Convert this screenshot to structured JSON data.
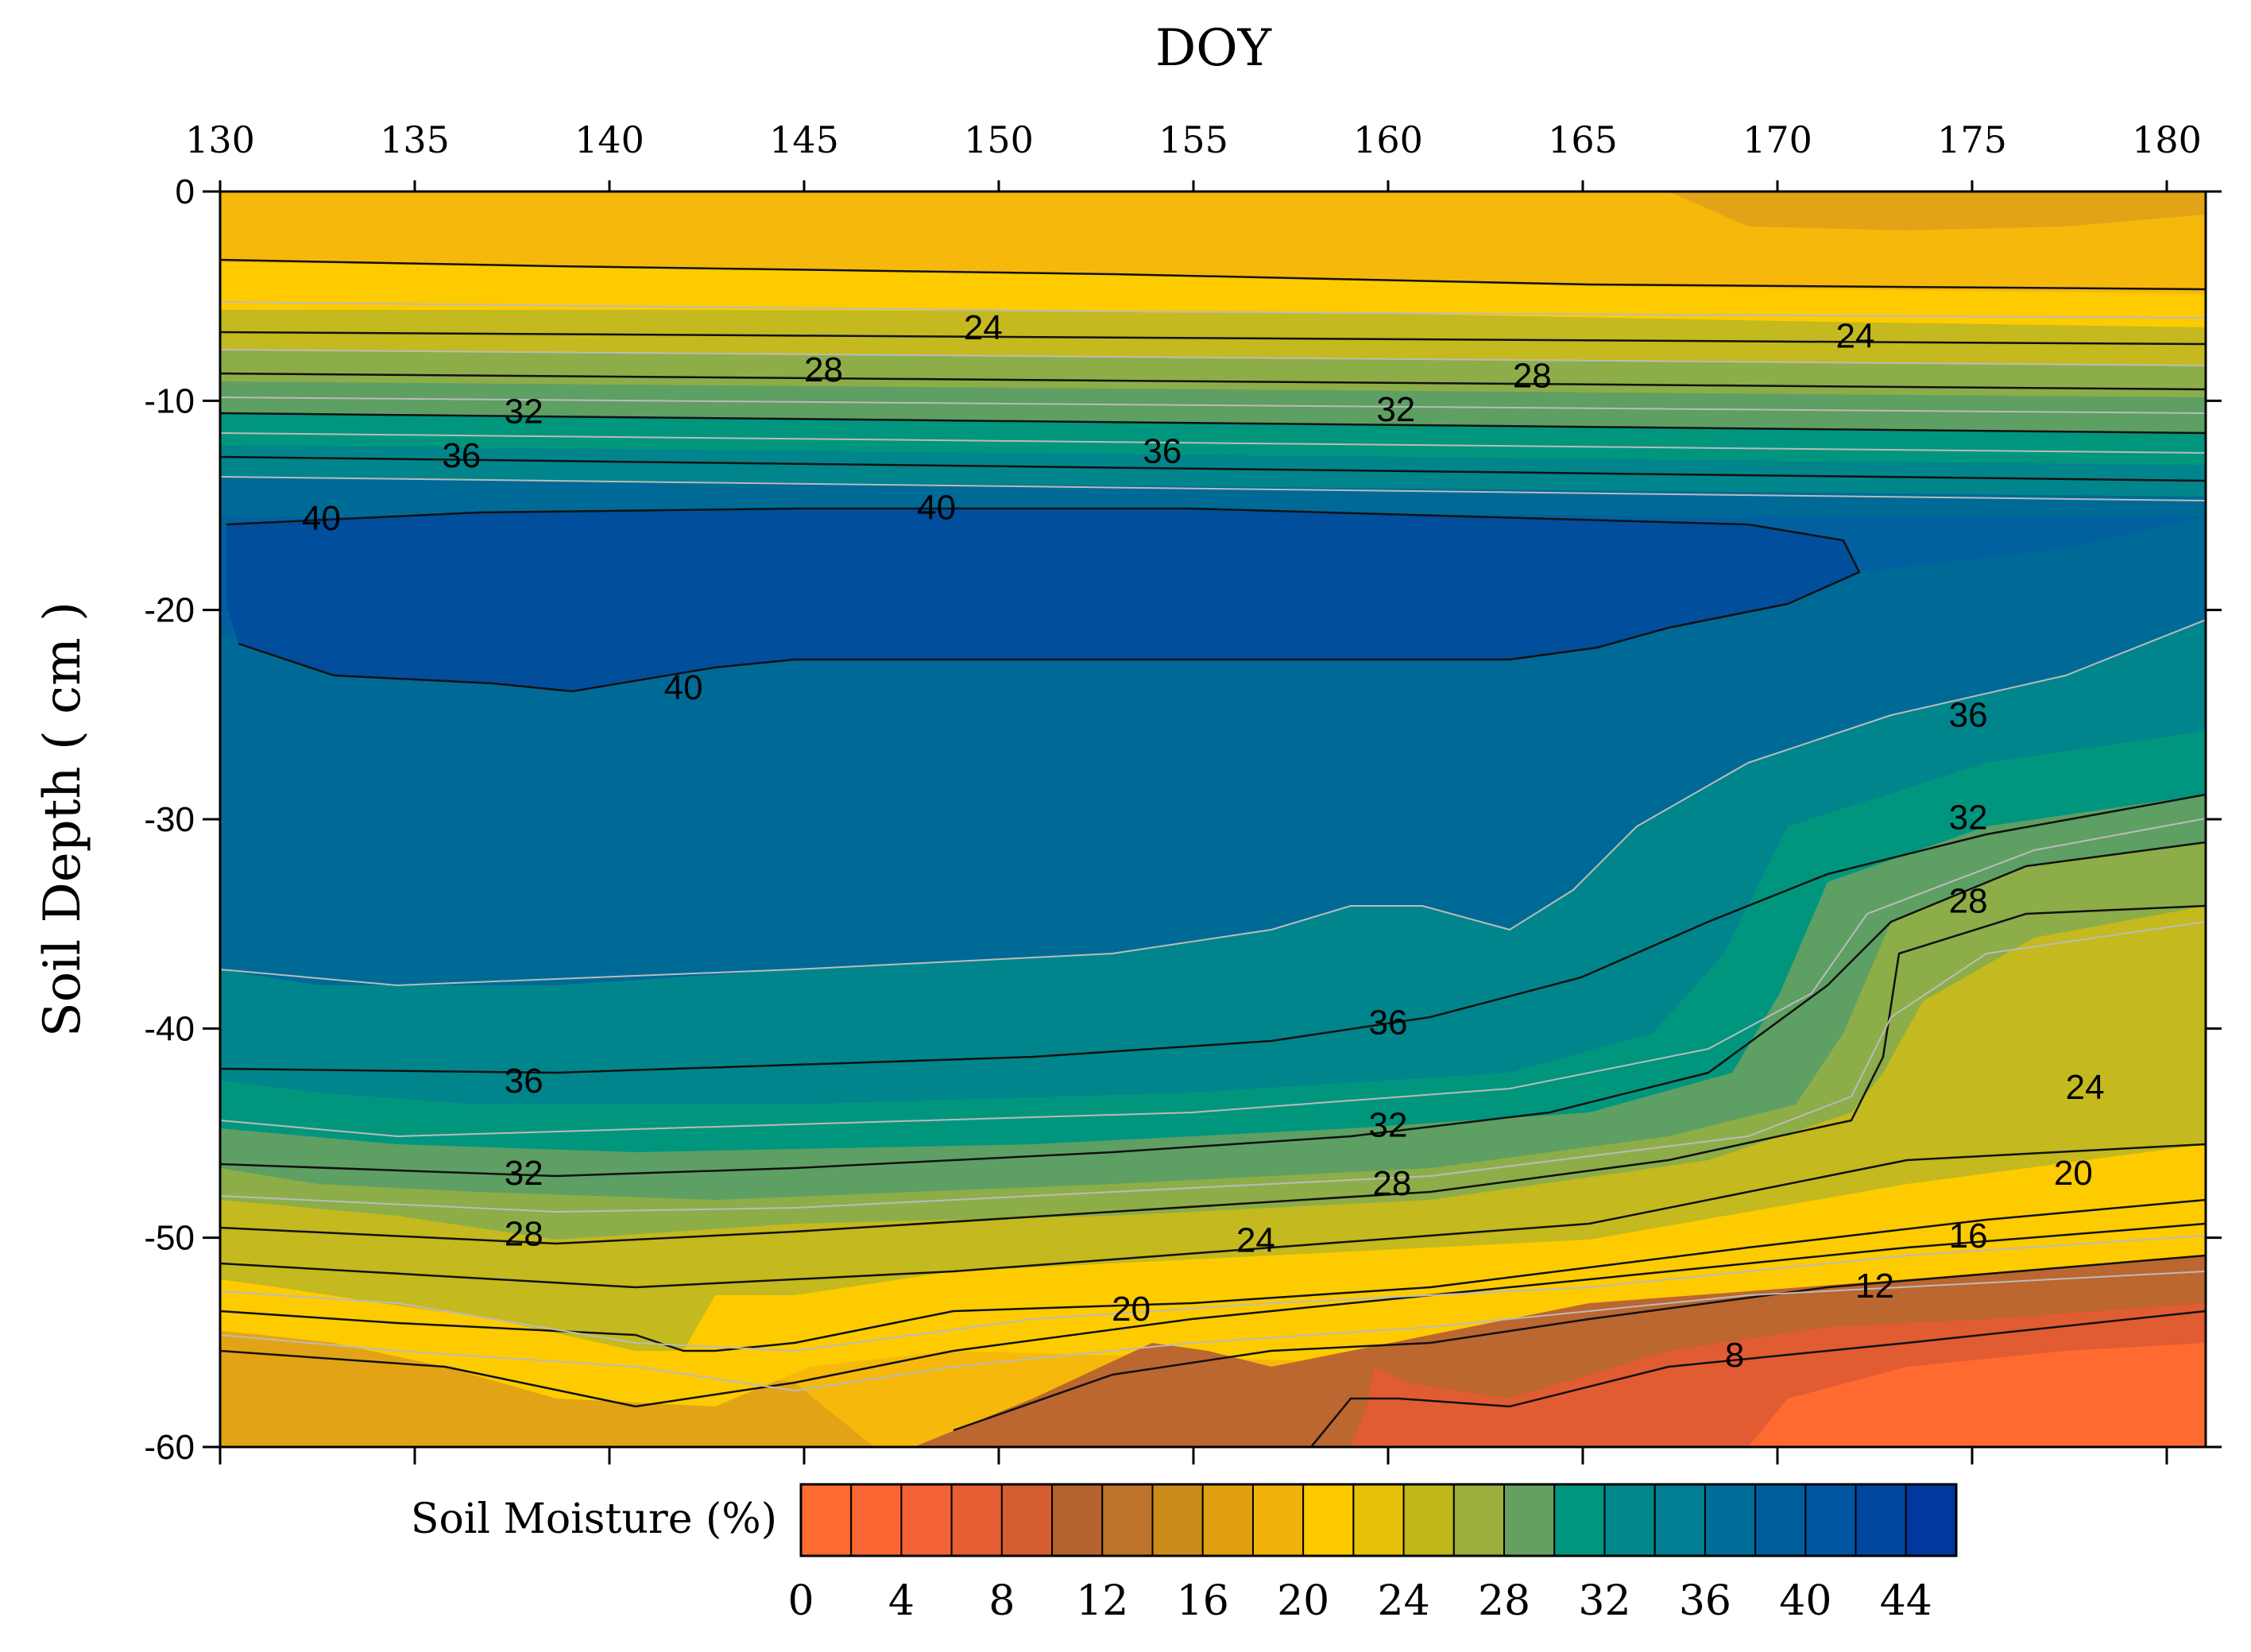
{
  "chart_data": {
    "type": "heatmap",
    "subtype": "filled-contour",
    "title": "",
    "xlabel": "DOY",
    "ylabel": "Soil Depth ( cm )",
    "x_axis_position": "top",
    "xlim": [
      130,
      181
    ],
    "ylim": [
      -60,
      0
    ],
    "x_ticks": [
      130,
      135,
      140,
      145,
      150,
      155,
      160,
      165,
      170,
      175,
      180
    ],
    "x_tick_labels": [
      "130",
      "135",
      "140",
      "145",
      "150",
      "155",
      "160",
      "165",
      "170",
      "175",
      "180"
    ],
    "y_ticks": [
      0,
      -10,
      -20,
      -30,
      -40,
      -50,
      -60
    ],
    "y_tick_labels": [
      "0",
      "-10",
      "-20",
      "-30",
      "-40",
      "-50",
      "-60"
    ],
    "colorbar": {
      "label": "Soil Moisture (%)",
      "levels": [
        0,
        2,
        4,
        6,
        8,
        10,
        12,
        14,
        16,
        18,
        20,
        22,
        24,
        26,
        28,
        30,
        32,
        34,
        36,
        38,
        40,
        42,
        44,
        46
      ],
      "colors": [
        "#FF6A30",
        "#FA6632",
        "#F26234",
        "#E65E34",
        "#D45E30",
        "#B4622E",
        "#BE742A",
        "#CC8C1A",
        "#E1A012",
        "#F2B00A",
        "#FDC900",
        "#E6C10A",
        "#C0B81A",
        "#9AAE3E",
        "#66A060",
        "#00967E",
        "#00888A",
        "#007E94",
        "#006E98",
        "#005E9E",
        "#0056A0",
        "#0048A0",
        "#00389E"
      ],
      "tick_values": [
        0,
        4,
        8,
        12,
        16,
        20,
        24,
        28,
        32,
        36,
        40,
        44
      ],
      "tick_labels": [
        "0",
        "4",
        "8",
        "12",
        "16",
        "20",
        "24",
        "28",
        "32",
        "36",
        "40",
        "44"
      ]
    },
    "band_colors": {
      "b0_6": "#FF6A30",
      "b6_10": "#E15B33",
      "b10_14": "#BC6630",
      "b14_18": "#E2A416",
      "b18_22": "#F6B80A",
      "b22_26": "#FDCB00",
      "b26_30": "#C4B91E",
      "b30_32": "#8DAD48",
      "b32_34": "#5E9F63",
      "b34_36": "#00967E",
      "b36_38": "#00858C",
      "b38_40": "#006A97",
      "b40_42": "#0060A0",
      "b42_44": "#004E9C"
    },
    "contour_labels": [
      {
        "text": "24",
        "doy": 149.6,
        "depth": -6.5
      },
      {
        "text": "24",
        "doy": 172.0,
        "depth": -6.9
      },
      {
        "text": "28",
        "doy": 145.5,
        "depth": -8.5
      },
      {
        "text": "28",
        "doy": 163.7,
        "depth": -8.8
      },
      {
        "text": "32",
        "doy": 137.8,
        "depth": -10.5
      },
      {
        "text": "32",
        "doy": 160.2,
        "depth": -10.4
      },
      {
        "text": "36",
        "doy": 136.2,
        "depth": -12.6
      },
      {
        "text": "36",
        "doy": 154.2,
        "depth": -12.4
      },
      {
        "text": "40",
        "doy": 132.6,
        "depth": -15.6
      },
      {
        "text": "40",
        "doy": 148.4,
        "depth": -15.1
      },
      {
        "text": "40",
        "doy": 141.9,
        "depth": -23.7
      },
      {
        "text": "36",
        "doy": 174.9,
        "depth": -25.0
      },
      {
        "text": "32",
        "doy": 174.9,
        "depth": -29.9
      },
      {
        "text": "28",
        "doy": 174.9,
        "depth": -33.9
      },
      {
        "text": "36",
        "doy": 160.0,
        "depth": -39.7
      },
      {
        "text": "24",
        "doy": 177.9,
        "depth": -42.8
      },
      {
        "text": "36",
        "doy": 137.8,
        "depth": -42.5
      },
      {
        "text": "32",
        "doy": 160.0,
        "depth": -44.6
      },
      {
        "text": "32",
        "doy": 137.8,
        "depth": -46.9
      },
      {
        "text": "28",
        "doy": 160.1,
        "depth": -47.4
      },
      {
        "text": "20",
        "doy": 177.6,
        "depth": -46.9
      },
      {
        "text": "28",
        "doy": 137.8,
        "depth": -49.8
      },
      {
        "text": "24",
        "doy": 156.6,
        "depth": -50.1
      },
      {
        "text": "16",
        "doy": 174.9,
        "depth": -49.9
      },
      {
        "text": "12",
        "doy": 172.5,
        "depth": -52.3
      },
      {
        "text": "20",
        "doy": 153.4,
        "depth": -53.4
      },
      {
        "text": "8",
        "doy": 168.9,
        "depth": -55.6
      }
    ]
  }
}
